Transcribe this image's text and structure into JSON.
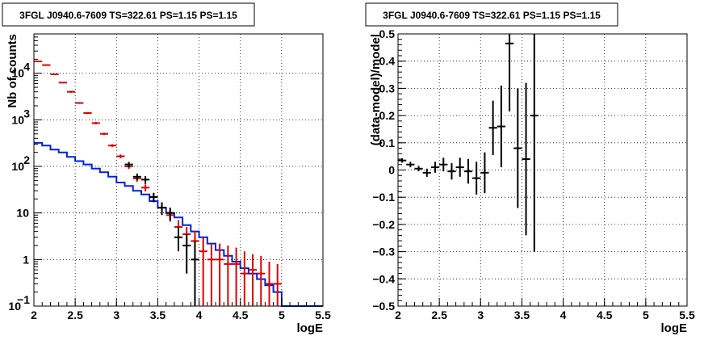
{
  "chart_data": [
    {
      "type": "scatter",
      "title": "3FGL J0940.6-7609 TS=322.61 PS=1.15 PS=1.15",
      "xlabel": "logE",
      "ylabel": "Nb of counts",
      "xlim": [
        2,
        5.5
      ],
      "ylim": [
        0.1,
        70000
      ],
      "yscale": "log",
      "grid": true,
      "x_ticks": [
        "2",
        "2.5",
        "3",
        "3.5",
        "4",
        "4.5",
        "5",
        "5.5"
      ],
      "y_ticks": [
        {
          "v": 0.1,
          "base": "10",
          "exp": "−1"
        },
        {
          "v": 1,
          "base": "1",
          "exp": ""
        },
        {
          "v": 10,
          "base": "10",
          "exp": ""
        },
        {
          "v": 100,
          "base": "10",
          "exp": "2"
        },
        {
          "v": 1000,
          "base": "10",
          "exp": "3"
        },
        {
          "v": 10000,
          "base": "10",
          "exp": "4"
        }
      ],
      "series": [
        {
          "color": "#000000",
          "x": [
            3.15,
            3.25,
            3.35,
            3.45,
            3.55,
            3.65,
            3.75,
            3.85,
            3.95
          ],
          "y": [
            110,
            60,
            52,
            22,
            13,
            10,
            3,
            2,
            1
          ],
          "ylow": [
            95,
            50,
            42,
            17,
            9,
            7,
            1.5,
            0.5,
            0.1
          ],
          "yhigh": [
            125,
            70,
            62,
            27,
            17,
            13,
            5,
            3.5,
            2.5
          ]
        },
        {
          "color": "#dd0000",
          "x": [
            2.05,
            2.15,
            2.25,
            2.35,
            2.45,
            2.55,
            2.65,
            2.75,
            2.85,
            2.95,
            3.05,
            3.15,
            3.25,
            3.35,
            3.45,
            3.55,
            3.65,
            3.75,
            3.85,
            3.95,
            4.05,
            4.15,
            4.25,
            4.35,
            4.45,
            4.55,
            4.65,
            4.75,
            4.85,
            4.95
          ],
          "y": [
            18000,
            15000,
            9500,
            6300,
            4000,
            2300,
            1400,
            850,
            500,
            280,
            165,
            100,
            55,
            35,
            22,
            13,
            9,
            5,
            3.5,
            2.5,
            1.5,
            1,
            1,
            0.8,
            0.8,
            0.5,
            0.6,
            0.5,
            0.3,
            0.3
          ],
          "ylow": [
            17500,
            14600,
            9200,
            6100,
            3800,
            2200,
            1330,
            800,
            470,
            260,
            150,
            88,
            47,
            29,
            17,
            10,
            6.5,
            3,
            1.8,
            0.8,
            0.1,
            0.1,
            0.1,
            0.1,
            0.1,
            0.1,
            0.1,
            0.1,
            0.1,
            0.1
          ],
          "yhigh": [
            18500,
            15400,
            9800,
            6500,
            4200,
            2400,
            1470,
            900,
            530,
            300,
            180,
            112,
            63,
            41,
            27,
            16,
            11.5,
            7,
            5,
            4,
            3,
            2.2,
            2.2,
            2,
            1.8,
            1.5,
            1.3,
            1.2,
            0.9,
            0.8
          ]
        }
      ],
      "model_step": {
        "color": "#0022dd",
        "edges": [
          2.0,
          2.1,
          2.2,
          2.3,
          2.4,
          2.5,
          2.6,
          2.7,
          2.8,
          2.9,
          3.0,
          3.1,
          3.2,
          3.3,
          3.4,
          3.5,
          3.6,
          3.7,
          3.8,
          3.9,
          4.0,
          4.1,
          4.2,
          4.3,
          4.4,
          4.5,
          4.6,
          4.7,
          4.8,
          4.9,
          5.0,
          5.5
        ],
        "values": [
          320,
          280,
          230,
          200,
          160,
          130,
          110,
          90,
          75,
          60,
          45,
          38,
          30,
          25,
          18,
          13,
          10,
          8,
          5.5,
          4,
          3,
          2.2,
          1.6,
          1.2,
          0.9,
          0.65,
          0.5,
          0.38,
          0.28,
          0.2,
          0.1
        ]
      }
    },
    {
      "type": "scatter",
      "title": "3FGL J0940.6-7609 TS=322.61 PS=1.15 PS=1.15",
      "xlabel": "logE",
      "ylabel": "(data-model)/model",
      "xlim": [
        2,
        5.5
      ],
      "ylim": [
        -0.5,
        0.5
      ],
      "grid": true,
      "x_ticks": [
        "2",
        "2.5",
        "3",
        "3.5",
        "4",
        "4.5",
        "5",
        "5.5"
      ],
      "y_ticks": [
        "−0.5",
        "−0.4",
        "−0.3",
        "−0.2",
        "−0.1",
        "0",
        "0.1",
        "0.2",
        "0.3",
        "0.4",
        "0.5"
      ],
      "series": [
        {
          "color": "#000000",
          "x": [
            2.05,
            2.15,
            2.25,
            2.35,
            2.45,
            2.55,
            2.65,
            2.75,
            2.85,
            2.95,
            3.05,
            3.15,
            3.25,
            3.35,
            3.45,
            3.55,
            3.65
          ],
          "y": [
            0.035,
            0.02,
            0.005,
            -0.01,
            0.01,
            0.02,
            -0.005,
            0.01,
            -0.005,
            -0.03,
            -0.01,
            0.155,
            0.16,
            0.465,
            0.08,
            0.04,
            0.2
          ],
          "yerr": [
            0.008,
            0.01,
            0.01,
            0.015,
            0.02,
            0.025,
            0.03,
            0.035,
            0.045,
            0.06,
            0.075,
            0.1,
            0.15,
            0.25,
            0.22,
            0.28,
            0.5
          ]
        }
      ]
    }
  ]
}
